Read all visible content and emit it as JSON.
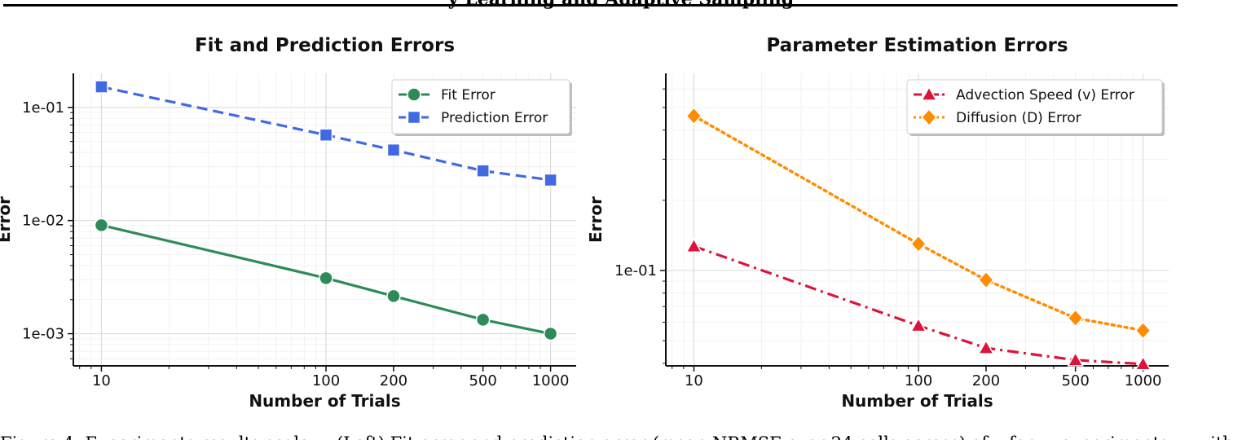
{
  "page": {
    "header_text": "y Learning and Adaptive Sampling",
    "caption_text": "Figure 4: Experiments results scale.... (Left) Fit error and prediction error (mean NRMSE over 24 cells across) of... for ... experiments ... with"
  },
  "colors": {
    "fit": "#2e8b57",
    "prediction": "#4169e1",
    "advection": "#dc143c",
    "diffusion": "#ff8c00"
  },
  "chart_data": [
    {
      "type": "line",
      "title": "Fit and Prediction Errors",
      "xlabel": "Number of Trials",
      "ylabel": "Error",
      "x_scale": "log",
      "y_scale": "log",
      "x": [
        10,
        100,
        200,
        500,
        1000
      ],
      "xticks": [
        "10",
        "100",
        "200",
        "500",
        "1000"
      ],
      "yticks": [
        0.001,
        0.01,
        0.1
      ],
      "ytick_labels": [
        "1e-03",
        "1e-02",
        "1e-01"
      ],
      "xlim": [
        7.5,
        1300
      ],
      "ylim": [
        0.00052,
        0.2
      ],
      "grid": true,
      "legend": "top-right",
      "series": [
        {
          "name": "Fit Error",
          "marker": "circle",
          "line": "solid",
          "color": "#2e8b57",
          "values": [
            0.0091,
            0.0031,
            0.00215,
            0.00133,
            0.001
          ]
        },
        {
          "name": "Prediction Error",
          "marker": "square",
          "line": "dashed",
          "color": "#4169e1",
          "values": [
            0.152,
            0.057,
            0.042,
            0.0275,
            0.0228
          ]
        }
      ]
    },
    {
      "type": "line",
      "title": "Parameter Estimation Errors",
      "xlabel": "Number of Trials",
      "ylabel": "Error",
      "x_scale": "log",
      "y_scale": "log",
      "x": [
        10,
        100,
        200,
        500,
        1000
      ],
      "xticks": [
        "10",
        "100",
        "200",
        "500",
        "1000"
      ],
      "yticks": [
        0.1
      ],
      "ytick_labels": [
        "1e-01"
      ],
      "xlim": [
        7.5,
        1300
      ],
      "ylim": [
        0.039,
        0.7
      ],
      "grid": true,
      "legend": "top-right",
      "series": [
        {
          "name": "Advection Speed (v) Error",
          "marker": "triangle",
          "line": "dashdot",
          "color": "#dc143c",
          "values": [
            0.127,
            0.058,
            0.0465,
            0.0413,
            0.0397
          ]
        },
        {
          "name": "Diffusion (D) Error",
          "marker": "diamond",
          "line": "dotted",
          "color": "#ff8c00",
          "values": [
            0.46,
            0.13,
            0.091,
            0.0625,
            0.0553
          ]
        }
      ]
    }
  ]
}
